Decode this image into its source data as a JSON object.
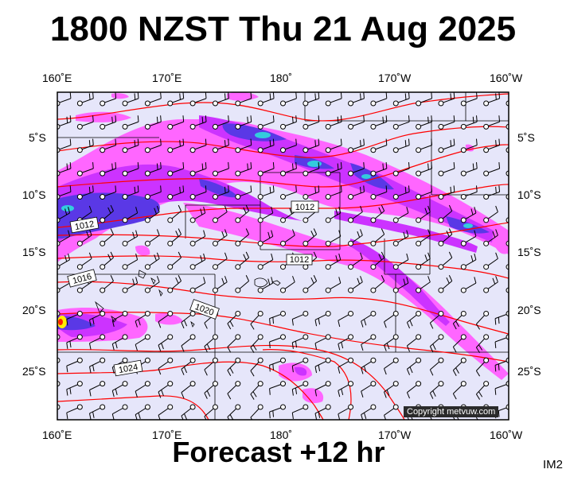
{
  "title": "1800 NZST Thu 21 Aug 2025",
  "subtitle": "Forecast +12 hr",
  "image_tag": "IM2",
  "copyright": "Copyright metvuw.com",
  "lon_labels": [
    "160˚E",
    "170˚E",
    "180˚",
    "170˚W",
    "160˚W"
  ],
  "lat_labels": [
    "5˚S",
    "10˚S",
    "15˚S",
    "20˚S",
    "25˚S"
  ],
  "isobar_labels": [
    "1012",
    "1012",
    "1016",
    "1020",
    "1024",
    "1012"
  ],
  "colors": {
    "ocean": "#e6e6fa",
    "rain_light": "#ff66ff",
    "rain_medium": "#cc33ff",
    "rain_heavy": "#5a38e6",
    "rain_very_heavy": "#33ccdd",
    "isobar": "#ff0000",
    "boundary": "#000000"
  },
  "map": {
    "lon_range": [
      "160E",
      "160W"
    ],
    "lat_range": [
      "2S",
      "29S"
    ]
  }
}
